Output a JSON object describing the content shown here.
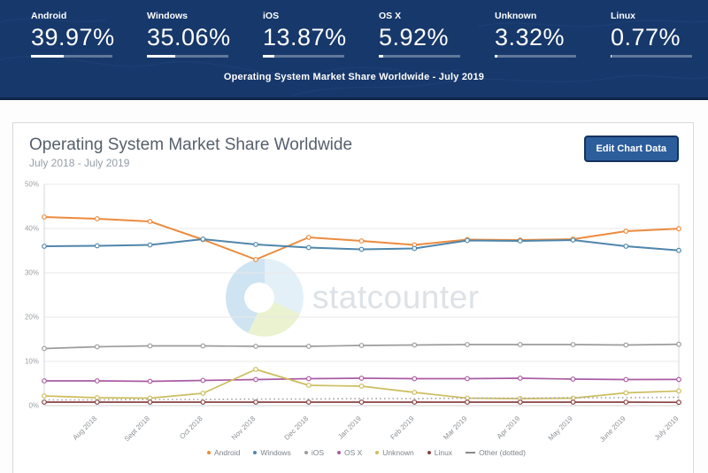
{
  "header": {
    "bg_color": "#17386b",
    "subtitle": "Operating System Market Share Worldwide - July 2019",
    "stats": [
      {
        "label": "Android",
        "value": "39.97%",
        "pct": 39.97
      },
      {
        "label": "Windows",
        "value": "35.06%",
        "pct": 35.06
      },
      {
        "label": "iOS",
        "value": "13.87%",
        "pct": 13.87
      },
      {
        "label": "OS X",
        "value": "5.92%",
        "pct": 5.92
      },
      {
        "label": "Unknown",
        "value": "3.32%",
        "pct": 3.32
      },
      {
        "label": "Linux",
        "value": "0.77%",
        "pct": 0.77
      }
    ]
  },
  "card": {
    "title": "Operating System Market Share Worldwide",
    "subtitle": "July 2018 - July 2019",
    "edit_button_label": "Edit Chart Data",
    "button_color": "#2d5e9c"
  },
  "watermark_text": "statcounter",
  "chart_data": {
    "type": "line",
    "title": "Operating System Market Share Worldwide",
    "subtitle": "July 2018 - July 2019",
    "categories": [
      "Jul 2018",
      "Aug 2018",
      "Sept 2018",
      "Oct 2018",
      "Nov 2018",
      "Dec 2018",
      "Jan 2019",
      "Feb 2019",
      "Mar 2019",
      "Apr 2019",
      "May 2019",
      "June 2019",
      "July 2019"
    ],
    "x_labels_start_index": 1,
    "ylim": [
      0,
      50
    ],
    "ytick_step": 10,
    "yticks": [
      "0%",
      "10%",
      "20%",
      "30%",
      "40%",
      "50%"
    ],
    "grid": true,
    "legend_position": "bottom",
    "series": [
      {
        "name": "Android",
        "color": "#ec8b3f",
        "dotted": false,
        "width": 2,
        "values": [
          42.6,
          42.2,
          41.6,
          37.5,
          33.0,
          38.0,
          37.2,
          36.3,
          37.5,
          37.4,
          37.6,
          39.4,
          39.97
        ]
      },
      {
        "name": "Windows",
        "color": "#4f86ac",
        "dotted": false,
        "width": 2,
        "values": [
          36.0,
          36.1,
          36.3,
          37.6,
          36.4,
          35.7,
          35.3,
          35.5,
          37.3,
          37.2,
          37.4,
          36.0,
          35.06
        ]
      },
      {
        "name": "iOS",
        "color": "#9c9c9c",
        "dotted": false,
        "width": 1.7,
        "values": [
          12.9,
          13.3,
          13.5,
          13.5,
          13.4,
          13.4,
          13.6,
          13.7,
          13.8,
          13.8,
          13.8,
          13.7,
          13.87
        ]
      },
      {
        "name": "OS X",
        "color": "#aa5ba4",
        "dotted": false,
        "width": 1.7,
        "values": [
          5.6,
          5.6,
          5.5,
          5.7,
          5.9,
          6.1,
          6.2,
          6.1,
          6.1,
          6.2,
          6.0,
          5.9,
          5.92
        ]
      },
      {
        "name": "Unknown",
        "color": "#cdbd5e",
        "dotted": false,
        "width": 1.7,
        "values": [
          2.2,
          1.8,
          1.7,
          2.8,
          8.2,
          4.6,
          4.4,
          3.0,
          1.7,
          1.6,
          1.7,
          2.9,
          3.32
        ]
      },
      {
        "name": "Linux",
        "color": "#8a4242",
        "dotted": false,
        "width": 1.7,
        "values": [
          0.8,
          0.8,
          0.8,
          0.8,
          0.8,
          0.8,
          0.8,
          0.8,
          0.8,
          0.8,
          0.8,
          0.8,
          0.77
        ]
      },
      {
        "name": "Other (dotted)",
        "color": "#a3a3a3",
        "dotted": true,
        "width": 1.6,
        "values": [
          1.3,
          1.3,
          1.4,
          1.4,
          1.5,
          1.5,
          1.6,
          1.6,
          1.7,
          1.7,
          1.8,
          1.8,
          1.9
        ]
      }
    ]
  }
}
